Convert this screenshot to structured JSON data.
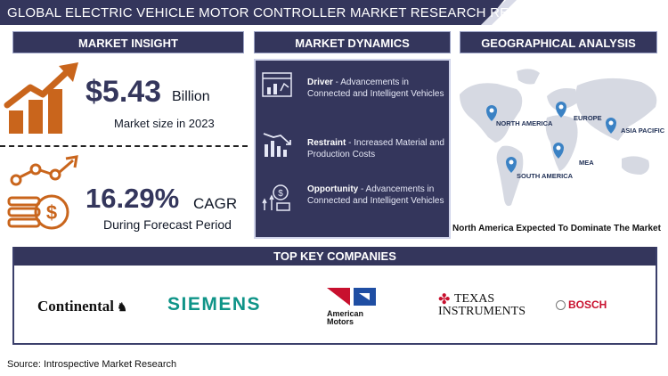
{
  "title": "GLOBAL ELECTRIC VEHICLE MOTOR CONTROLLER MARKET RESEARCH REPORT",
  "sections": {
    "insight": "MARKET INSIGHT",
    "dynamics": "MARKET DYNAMICS",
    "geo": "GEOGRAPHICAL ANALYSIS",
    "companies": "TOP KEY COMPANIES"
  },
  "insight": {
    "market_size_value": "$5.43",
    "market_size_unit": "Billion",
    "market_size_caption": "Market size in 2023",
    "cagr_value": "16.29%",
    "cagr_unit": "CAGR",
    "cagr_caption": "During Forecast Period"
  },
  "dynamics": [
    {
      "label": "Driver",
      "text": " - Advancements in Connected and Intelligent Vehicles",
      "icon": "dashboard-analytics-icon"
    },
    {
      "label": "Restraint",
      "text": " - Increased Material and Production Costs",
      "icon": "declining-chart-icon"
    },
    {
      "label": "Opportunity",
      "text": " - Advancements in Connected and Intelligent Vehicles",
      "icon": "growth-opportunity-icon"
    }
  ],
  "geo": {
    "regions": [
      "NORTH AMERICA",
      "EUROPE",
      "ASIA PACIFIC",
      "MEA",
      "SOUTH AMERICA"
    ],
    "caption": "North America Expected To Dominate The Market"
  },
  "companies": {
    "continental": "Continental",
    "siemens": "SIEMENS",
    "american_motors_line1": "American",
    "american_motors_line2": "Motors",
    "ti_line1": "TEXAS",
    "ti_line2": "INSTRUMENTS",
    "bosch": "BOSCH"
  },
  "source": "Source: Introspective Market Research",
  "colors": {
    "navy": "#34365c",
    "orange": "#c9651c",
    "teal": "#0f9488",
    "red": "#c8102e",
    "blue": "#1f4ea3"
  }
}
